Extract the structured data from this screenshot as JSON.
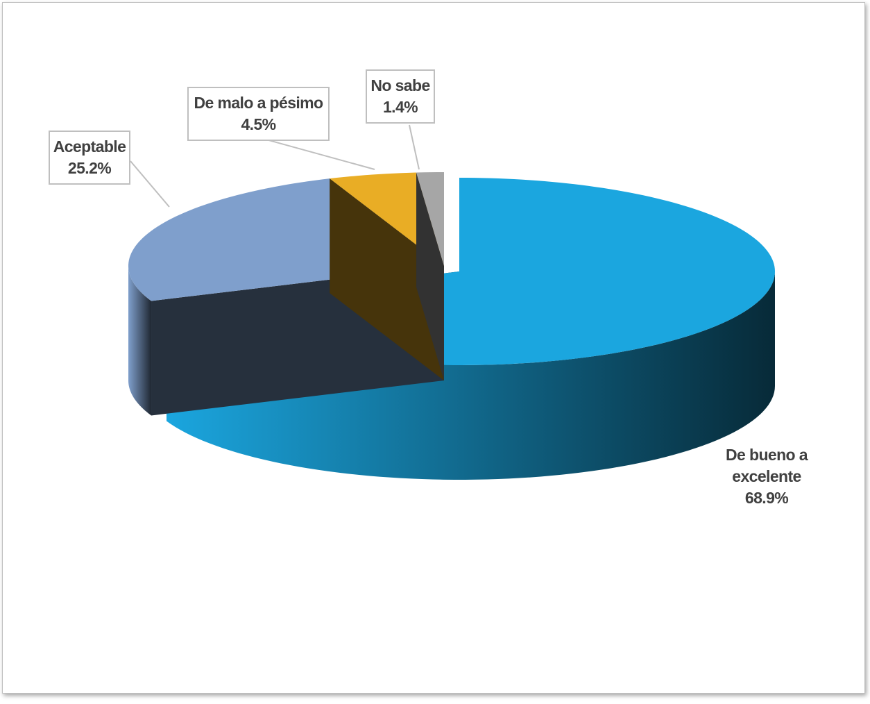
{
  "chart_data": {
    "type": "pie3d",
    "categories": [
      "De bueno a excelente",
      "Aceptable",
      "De malo a pésimo",
      "No sabe"
    ],
    "values": [
      68.9,
      25.2,
      4.5,
      1.4
    ],
    "value_labels": [
      "68.9%",
      "25.2%",
      "4.5%",
      "1.4%"
    ],
    "colors": [
      "#1ba6df",
      "#7f9fcc",
      "#e9ad25",
      "#a6a6a6"
    ]
  }
}
